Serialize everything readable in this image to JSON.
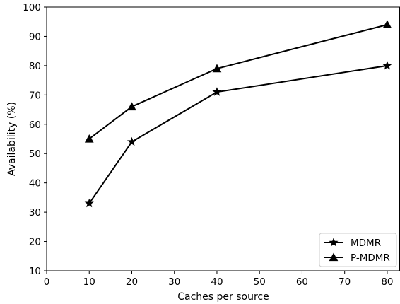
{
  "chart_data": {
    "type": "line",
    "title": "",
    "xlabel": "Caches per source",
    "ylabel": "Availability (%)",
    "xlim": [
      0,
      83
    ],
    "ylim": [
      10,
      100
    ],
    "xticks": [
      0,
      10,
      20,
      30,
      40,
      50,
      60,
      70,
      80
    ],
    "yticks": [
      10,
      20,
      30,
      40,
      50,
      60,
      70,
      80,
      90,
      100
    ],
    "x": [
      10,
      20,
      40,
      80
    ],
    "series": [
      {
        "name": "MDMR",
        "marker": "star",
        "color": "#000000",
        "values": [
          33,
          54,
          71,
          80
        ]
      },
      {
        "name": "P-MDMR",
        "marker": "triangle",
        "color": "#000000",
        "values": [
          55,
          66,
          79,
          94
        ]
      }
    ],
    "legend": {
      "position": "bottom-right"
    },
    "grid": false
  }
}
